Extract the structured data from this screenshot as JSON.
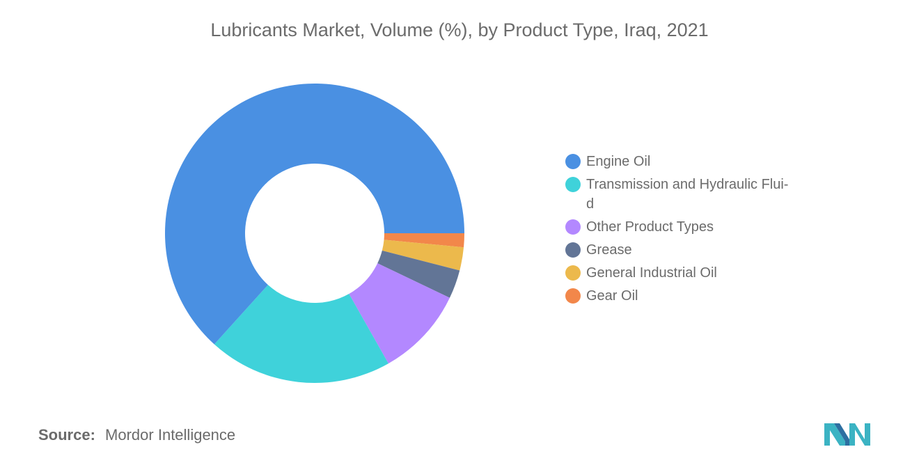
{
  "title": "Lubricants Market, Volume (%), by Product Type, Iraq, 2021",
  "source": {
    "label": "Source:",
    "value": "Mordor Intelligence"
  },
  "colors": {
    "engine_oil": "#4a90e2",
    "transmission": "#3fd2da",
    "other": "#b388ff",
    "grease": "#627596",
    "general_industrial": "#ecb94c",
    "gear_oil": "#f2874a",
    "text": "#6b6b6b",
    "logo_primary": "#3bb3c3",
    "logo_secondary": "#2d6fa1"
  },
  "chart_data": {
    "type": "pie",
    "variant": "donut",
    "title": "Lubricants Market, Volume (%), by Product Type, Iraq, 2021",
    "legend_position": "right",
    "slices": [
      {
        "label": "Engine Oil",
        "value": 63.3,
        "color": "#4a90e2"
      },
      {
        "label": "Transmission and Hydraulic Fluid",
        "value": 19.9,
        "color": "#3fd2da"
      },
      {
        "label": "Other Product Types",
        "value": 9.7,
        "color": "#b388ff"
      },
      {
        "label": "Grease",
        "value": 3.1,
        "color": "#627596"
      },
      {
        "label": "General Industrial Oil",
        "value": 2.5,
        "color": "#ecb94c"
      },
      {
        "label": "Gear Oil",
        "value": 1.5,
        "color": "#f2874a"
      }
    ]
  },
  "legend": {
    "items": [
      {
        "label": "Engine Oil",
        "color": "#4a90e2"
      },
      {
        "label": "Transmission and Hydraulic Flui-\nd",
        "color": "#3fd2da"
      },
      {
        "label": "Other Product Types",
        "color": "#b388ff"
      },
      {
        "label": "Grease",
        "color": "#627596"
      },
      {
        "label": "General Industrial Oil",
        "color": "#ecb94c"
      },
      {
        "label": "Gear Oil",
        "color": "#f2874a"
      }
    ]
  }
}
